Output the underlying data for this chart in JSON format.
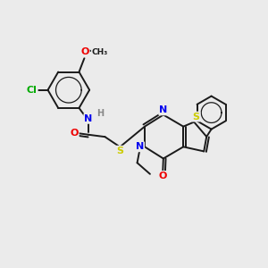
{
  "bg_color": "#ebebeb",
  "bond_color": "#1a1a1a",
  "colors": {
    "N": "#0000ee",
    "O": "#ee0000",
    "S": "#cccc00",
    "Cl": "#00aa00",
    "H": "#888888",
    "C": "#1a1a1a"
  },
  "lw": 1.4,
  "fs": 7.5
}
